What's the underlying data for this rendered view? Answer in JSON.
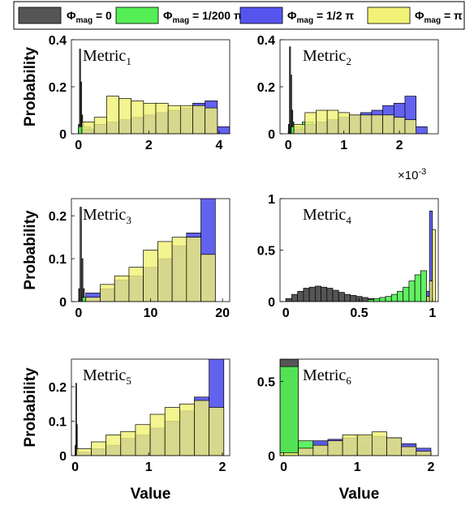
{
  "legend": {
    "entries": [
      {
        "symbol": "Φ",
        "sub": "mag",
        "rest": " = 0",
        "color": "#555555"
      },
      {
        "symbol": "Φ",
        "sub": "mag",
        "rest": " = 1/200  π",
        "color": "#55ee55"
      },
      {
        "symbol": "Φ",
        "sub": "mag",
        "rest": " = 1/2  π",
        "color": "#5555ee"
      },
      {
        "symbol": "Φ",
        "sub": "mag",
        "rest": " = π",
        "color": "#f2f277"
      }
    ]
  },
  "colors": {
    "gray": "#555555",
    "green": "#55ee55",
    "blue": "#5555ee",
    "yellow": "#f2f277",
    "overlap": "#c5c070"
  },
  "chart_data": [
    {
      "type": "bar",
      "name": "Metric",
      "sub": "1",
      "xlabel": "",
      "ylabel": "Probability",
      "xlim": [
        -0.2,
        4.3
      ],
      "ylim": [
        0,
        0.4
      ],
      "xticks": [
        {
          "v": 0,
          "l": "0"
        },
        {
          "v": 2,
          "l": "2"
        },
        {
          "v": 4,
          "l": "4"
        }
      ],
      "yticks": [
        {
          "v": 0,
          "l": "0"
        },
        {
          "v": 0.2,
          "l": "0.2"
        },
        {
          "v": 0.4,
          "l": "0.4"
        }
      ],
      "exponent": "",
      "series": [
        {
          "name": "Φmag = 0",
          "color": "gray",
          "edges": [
            0,
            0.03,
            0.06,
            0.09,
            0.12,
            0.15,
            0.18,
            0.21
          ],
          "values": [
            0.04,
            0.36,
            0.22,
            0.08,
            0.05,
            0.03,
            0.02
          ]
        },
        {
          "name": "Φmag = 1/200 π",
          "color": "green",
          "edges": [
            0,
            0.35,
            0.7
          ],
          "values": [
            0.03,
            0.01
          ]
        },
        {
          "name": "Φmag = 1/2 π",
          "color": "blue",
          "edges": [
            0.1,
            0.45,
            0.8,
            1.15,
            1.5,
            1.85,
            2.2,
            2.55,
            2.9,
            3.25,
            3.6,
            3.95,
            4.3
          ],
          "values": [
            0.02,
            0.04,
            0.05,
            0.06,
            0.07,
            0.08,
            0.09,
            0.1,
            0.11,
            0.13,
            0.14,
            0.03
          ]
        },
        {
          "name": "Φmag = π",
          "color": "yellow",
          "edges": [
            0.1,
            0.45,
            0.8,
            1.15,
            1.5,
            1.85,
            2.2,
            2.55,
            2.9,
            3.25,
            3.6,
            3.95
          ],
          "values": [
            0.05,
            0.07,
            0.16,
            0.15,
            0.14,
            0.13,
            0.13,
            0.12,
            0.12,
            0.12,
            0.11
          ]
        }
      ]
    },
    {
      "type": "bar",
      "name": "Metric",
      "sub": "2",
      "xlabel": "",
      "ylabel": "",
      "xlim": [
        -0.15,
        2.7
      ],
      "ylim": [
        0,
        0.4
      ],
      "xticks": [
        {
          "v": 0,
          "l": "0"
        },
        {
          "v": 1,
          "l": "1"
        },
        {
          "v": 2,
          "l": "2"
        }
      ],
      "yticks": [
        {
          "v": 0,
          "l": "0"
        },
        {
          "v": 0.2,
          "l": "0.2"
        },
        {
          "v": 0.4,
          "l": "0.4"
        }
      ],
      "exponent": "10",
      "exponent_power": "-3",
      "series": [
        {
          "name": "Φmag = 0",
          "color": "gray",
          "edges": [
            0,
            0.02,
            0.04,
            0.06,
            0.08,
            0.1,
            0.12
          ],
          "values": [
            0.04,
            0.37,
            0.25,
            0.1,
            0.05,
            0.02
          ]
        },
        {
          "name": "Φmag = 1/200 π",
          "color": "green",
          "edges": [
            0.05,
            0.25,
            0.45
          ],
          "values": [
            0.03,
            0.05
          ]
        },
        {
          "name": "Φmag = 1/2 π",
          "color": "blue",
          "edges": [
            0.1,
            0.3,
            0.5,
            0.7,
            0.9,
            1.1,
            1.3,
            1.5,
            1.7,
            1.9,
            2.1,
            2.3,
            2.5
          ],
          "values": [
            0.02,
            0.04,
            0.05,
            0.06,
            0.07,
            0.08,
            0.09,
            0.1,
            0.12,
            0.13,
            0.16,
            0.03
          ]
        },
        {
          "name": "Φmag = π",
          "color": "yellow",
          "edges": [
            0.1,
            0.3,
            0.5,
            0.7,
            0.9,
            1.1,
            1.3,
            1.5,
            1.7,
            1.9,
            2.1,
            2.3
          ],
          "values": [
            0.04,
            0.09,
            0.1,
            0.1,
            0.09,
            0.08,
            0.08,
            0.08,
            0.08,
            0.07,
            0.06
          ]
        }
      ]
    },
    {
      "type": "bar",
      "name": "Metric",
      "sub": "3",
      "xlabel": "",
      "ylabel": "Probability",
      "xlim": [
        -1,
        21
      ],
      "ylim": [
        0,
        0.24
      ],
      "xticks": [
        {
          "v": 0,
          "l": "0"
        },
        {
          "v": 10,
          "l": "10"
        },
        {
          "v": 20,
          "l": "20"
        }
      ],
      "yticks": [
        {
          "v": 0,
          "l": "0"
        },
        {
          "v": 0.1,
          "l": "0.1"
        },
        {
          "v": 0.2,
          "l": "0.2"
        }
      ],
      "exponent": "",
      "series": [
        {
          "name": "Φmag = 0",
          "color": "gray",
          "edges": [
            0,
            0.2,
            0.4,
            0.6,
            0.8
          ],
          "values": [
            0.03,
            0.22,
            0.1,
            0.03
          ]
        },
        {
          "name": "Φmag = 1/200 π",
          "color": "green",
          "edges": [
            0.5,
            1.5
          ],
          "values": [
            0.01
          ]
        },
        {
          "name": "Φmag = 1/2 π",
          "color": "blue",
          "edges": [
            1,
            3,
            5,
            7,
            9,
            11,
            13,
            15,
            17,
            19
          ],
          "values": [
            0.02,
            0.03,
            0.05,
            0.06,
            0.08,
            0.1,
            0.13,
            0.16,
            0.25
          ]
        },
        {
          "name": "Φmag = π",
          "color": "yellow",
          "edges": [
            1,
            3,
            5,
            7,
            9,
            11,
            13,
            15,
            17,
            19
          ],
          "values": [
            0.01,
            0.04,
            0.06,
            0.08,
            0.12,
            0.14,
            0.15,
            0.15,
            0.11
          ]
        }
      ]
    },
    {
      "type": "bar",
      "name": "Metric",
      "sub": "4",
      "xlabel": "",
      "ylabel": "",
      "xlim": [
        -0.04,
        1.04
      ],
      "ylim": [
        0,
        1
      ],
      "xticks": [
        {
          "v": 0,
          "l": "0"
        },
        {
          "v": 0.5,
          "l": "0.5"
        },
        {
          "v": 1,
          "l": "1"
        }
      ],
      "yticks": [
        {
          "v": 0,
          "l": "0"
        },
        {
          "v": 0.5,
          "l": "0.5"
        },
        {
          "v": 1,
          "l": "1"
        }
      ],
      "exponent": "",
      "series": [
        {
          "name": "Φmag = 0",
          "color": "gray",
          "edges": [
            0,
            0.04,
            0.08,
            0.12,
            0.16,
            0.2,
            0.24,
            0.28,
            0.32,
            0.36,
            0.4,
            0.44,
            0.48,
            0.52,
            0.56,
            0.6,
            0.64,
            0.68,
            0.72,
            0.76,
            0.8,
            0.84
          ],
          "values": [
            0.03,
            0.07,
            0.1,
            0.13,
            0.14,
            0.15,
            0.14,
            0.13,
            0.11,
            0.09,
            0.07,
            0.06,
            0.05,
            0.04,
            0.03,
            0.02,
            0.02,
            0.01,
            0.01,
            0.01,
            0.01
          ]
        },
        {
          "name": "Φmag = 1/200 π",
          "color": "green",
          "edges": [
            0.56,
            0.6,
            0.64,
            0.68,
            0.72,
            0.76,
            0.8,
            0.84,
            0.88,
            0.92,
            0.96
          ],
          "values": [
            0.02,
            0.03,
            0.04,
            0.05,
            0.07,
            0.1,
            0.14,
            0.2,
            0.26,
            0.3
          ]
        },
        {
          "name": "Φmag = 1/2 π",
          "color": "blue",
          "edges": [
            0.96,
            0.98,
            1.0
          ],
          "values": [
            0.1,
            0.88
          ]
        },
        {
          "name": "Φmag = π",
          "color": "yellow",
          "edges": [
            0.96,
            0.98,
            1.0,
            1.02
          ],
          "values": [
            0.05,
            0.2,
            0.7
          ]
        }
      ]
    },
    {
      "type": "bar",
      "name": "Metric",
      "sub": "5",
      "xlabel": "Value",
      "ylabel": "Probability",
      "xlim": [
        -0.05,
        2.1
      ],
      "ylim": [
        0,
        0.28
      ],
      "xticks": [
        {
          "v": 0,
          "l": "0"
        },
        {
          "v": 1,
          "l": "1"
        },
        {
          "v": 2,
          "l": "2"
        }
      ],
      "yticks": [
        {
          "v": 0,
          "l": "0"
        },
        {
          "v": 0.1,
          "l": "0.1"
        },
        {
          "v": 0.2,
          "l": "0.2"
        }
      ],
      "exponent": "",
      "series": [
        {
          "name": "Φmag = 0",
          "color": "gray",
          "edges": [
            0,
            0.01,
            0.02,
            0.03,
            0.04
          ],
          "values": [
            0.03,
            0.21,
            0.09,
            0.02
          ]
        },
        {
          "name": "Φmag = 1/200 π",
          "color": "green",
          "edges": [
            0.02,
            0.12
          ],
          "values": [
            0.01
          ]
        },
        {
          "name": "Φmag = 1/2 π",
          "color": "blue",
          "edges": [
            0.02,
            0.22,
            0.42,
            0.62,
            0.82,
            1.02,
            1.22,
            1.42,
            1.62,
            1.82,
            2.02
          ],
          "values": [
            0.01,
            0.02,
            0.03,
            0.05,
            0.06,
            0.08,
            0.1,
            0.13,
            0.17,
            0.29
          ]
        },
        {
          "name": "Φmag = π",
          "color": "yellow",
          "edges": [
            0.02,
            0.22,
            0.42,
            0.62,
            0.82,
            1.02,
            1.22,
            1.42,
            1.62,
            1.82,
            2.02
          ],
          "values": [
            0.02,
            0.04,
            0.06,
            0.07,
            0.09,
            0.12,
            0.14,
            0.15,
            0.16,
            0.14
          ]
        }
      ]
    },
    {
      "type": "bar",
      "name": "Metric",
      "sub": "6",
      "xlabel": "Value",
      "ylabel": "",
      "xlim": [
        -0.05,
        2.1
      ],
      "ylim": [
        0,
        0.65
      ],
      "xticks": [
        {
          "v": 0,
          "l": "0"
        },
        {
          "v": 1,
          "l": "1"
        },
        {
          "v": 2,
          "l": "2"
        }
      ],
      "yticks": [
        {
          "v": 0,
          "l": "0"
        },
        {
          "v": 0.5,
          "l": "0.5"
        }
      ],
      "exponent": "",
      "series": [
        {
          "name": "Φmag = 0",
          "color": "gray",
          "edges": [
            -0.05,
            0.2
          ],
          "values": [
            0.65
          ]
        },
        {
          "name": "Φmag = 1/200 π",
          "color": "green",
          "edges": [
            -0.05,
            0.2,
            0.4,
            0.6,
            0.8,
            1.0,
            1.2,
            1.4,
            1.6,
            1.8,
            2.0
          ],
          "values": [
            0.6,
            0.1,
            0.09,
            0.08,
            0.07,
            0.06,
            0.05,
            0.04,
            0.03,
            0.02
          ]
        },
        {
          "name": "Φmag = 1/2 π",
          "color": "blue",
          "edges": [
            0.2,
            0.4,
            0.6,
            0.8,
            1.0,
            1.2,
            1.4,
            1.6,
            1.8,
            2.0
          ],
          "values": [
            0.05,
            0.1,
            0.11,
            0.12,
            0.13,
            0.13,
            0.12,
            0.08,
            0.05
          ]
        },
        {
          "name": "Φmag = π",
          "color": "yellow",
          "edges": [
            -0.05,
            0.2,
            0.4,
            0.6,
            0.8,
            1.0,
            1.2,
            1.4,
            1.6,
            1.8,
            2.0
          ],
          "values": [
            0.02,
            0.05,
            0.07,
            0.1,
            0.14,
            0.14,
            0.16,
            0.12,
            0.06,
            0.03
          ]
        }
      ]
    }
  ]
}
